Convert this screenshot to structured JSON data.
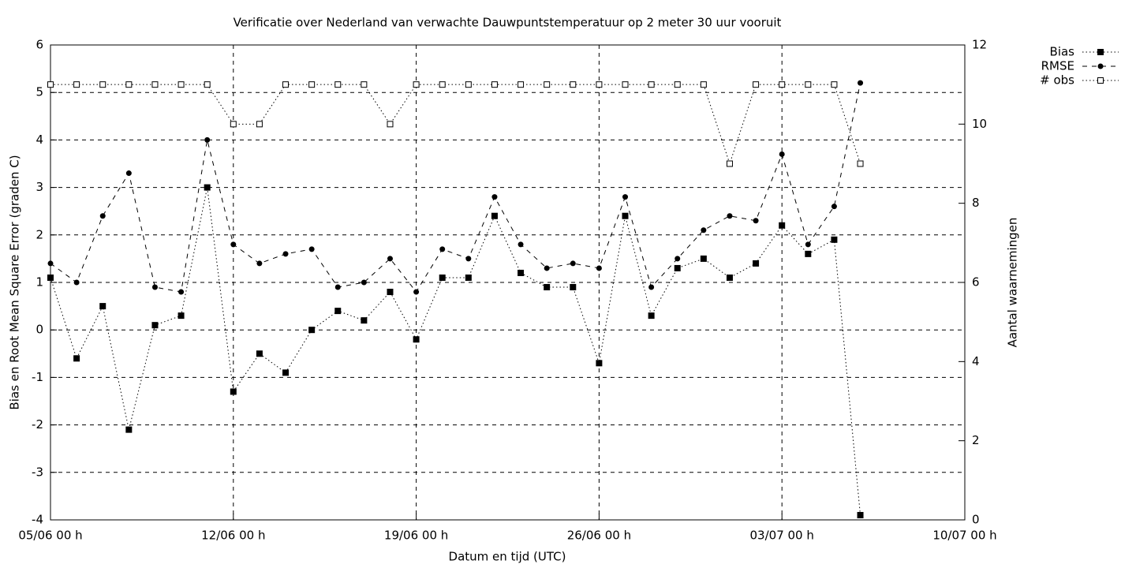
{
  "chart_data": {
    "type": "line",
    "title": "Verificatie over Nederland van verwachte Dauwpuntstemperatuur op 2 meter 30 uur vooruit",
    "x_label": "Datum en tijd (UTC)",
    "y_label": "Bias en Root Mean Square Error (graden C)",
    "y2_label": "Aantal waarnemingen",
    "x": [
      "05/06 00 h",
      "06/06 00 h",
      "07/06 00 h",
      "08/06 00 h",
      "09/06 00 h",
      "10/06 00 h",
      "11/06 00 h",
      "12/06 00 h",
      "13/06 00 h",
      "14/06 00 h",
      "15/06 00 h",
      "16/06 00 h",
      "17/06 00 h",
      "18/06 00 h",
      "19/06 00 h",
      "20/06 00 h",
      "21/06 00 h",
      "22/06 00 h",
      "23/06 00 h",
      "24/06 00 h",
      "25/06 00 h",
      "26/06 00 h",
      "27/06 00 h",
      "28/06 00 h",
      "29/06 00 h",
      "30/06 00 h",
      "01/07 00 h",
      "02/07 00 h",
      "03/07 00 h",
      "04/07 00 h",
      "05/07 00 h",
      "06/07 00 h"
    ],
    "xlim": [
      "05/06 00 h",
      "10/07 00 h"
    ],
    "xticks": [
      "05/06 00 h",
      "12/06 00 h",
      "19/06 00 h",
      "26/06 00 h",
      "03/07 00 h",
      "10/07 00 h"
    ],
    "ylim": [
      -4,
      6
    ],
    "yticks": [
      -4,
      -3,
      -2,
      -1,
      0,
      1,
      2,
      3,
      4,
      5,
      6
    ],
    "y2lim": [
      0,
      12
    ],
    "y2ticks": [
      0,
      2,
      4,
      6,
      8,
      10,
      12
    ],
    "grid": true,
    "legend": "top-right",
    "series": [
      {
        "name": "Bias",
        "color": "#000000",
        "line_style": "dotted",
        "marker": "filled-square",
        "values": [
          1.1,
          -0.6,
          0.5,
          -2.1,
          0.1,
          0.3,
          3.0,
          -1.3,
          -0.5,
          -0.9,
          0.0,
          0.4,
          0.2,
          0.8,
          -0.2,
          1.1,
          1.1,
          2.4,
          1.2,
          0.9,
          0.9,
          -0.7,
          2.4,
          0.3,
          1.3,
          1.5,
          1.1,
          1.4,
          2.2,
          1.6,
          1.9,
          -3.9
        ]
      },
      {
        "name": "RMSE",
        "color": "#000000",
        "line_style": "dashed",
        "marker": "filled-circle",
        "values": [
          1.4,
          1.0,
          2.4,
          3.3,
          0.9,
          0.8,
          4.0,
          1.8,
          1.4,
          1.6,
          1.7,
          0.9,
          1.0,
          1.5,
          0.8,
          1.7,
          1.5,
          2.8,
          1.8,
          1.3,
          1.4,
          1.3,
          2.8,
          0.9,
          1.5,
          2.1,
          2.4,
          2.3,
          3.7,
          1.8,
          2.6,
          5.2
        ]
      },
      {
        "name": "# obs",
        "color": "#000000",
        "line_style": "dotted",
        "marker": "open-square",
        "axis": "y2",
        "values": [
          11,
          11,
          11,
          11,
          11,
          11,
          11,
          10,
          10,
          11,
          11,
          11,
          11,
          10,
          11,
          11,
          11,
          11,
          11,
          11,
          11,
          11,
          11,
          11,
          11,
          11,
          9,
          11,
          11,
          11,
          11,
          9
        ]
      }
    ]
  }
}
